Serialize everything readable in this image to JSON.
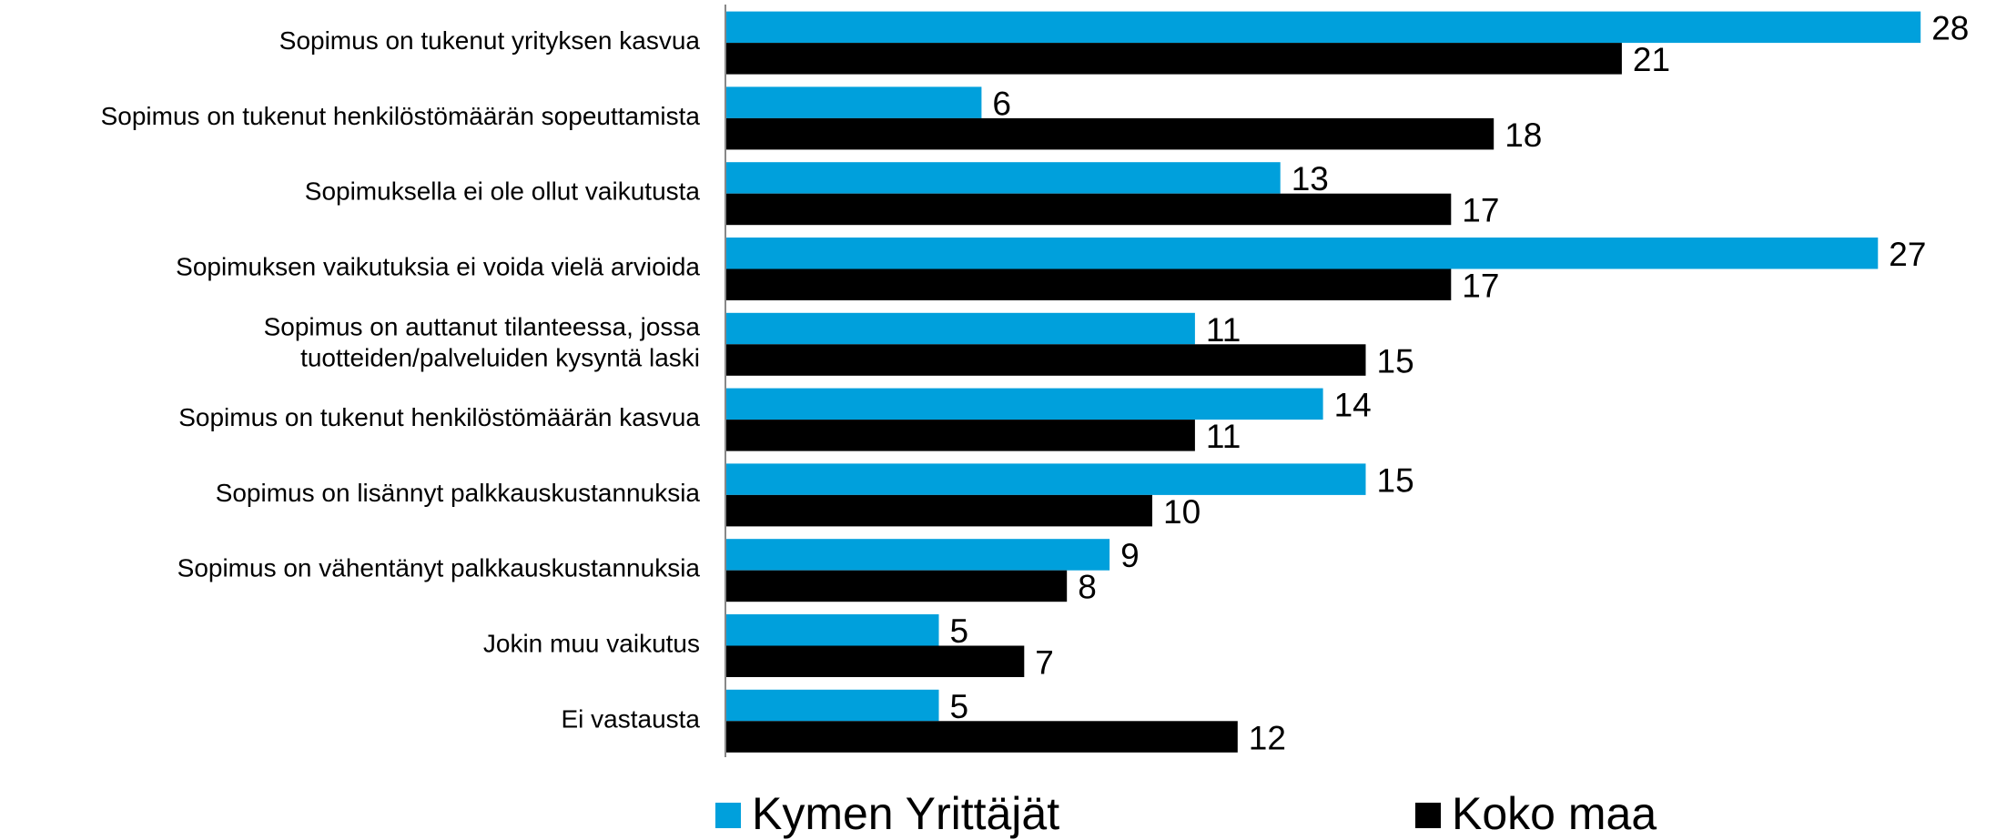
{
  "chart_data": {
    "type": "bar",
    "orientation": "horizontal",
    "categories": [
      "Sopimus on tukenut yrityksen kasvua",
      "Sopimus on tukenut henkilöstömäärän sopeuttamista",
      "Sopimuksella ei ole ollut vaikutusta",
      "Sopimuksen vaikutuksia ei voida vielä arvioida",
      "Sopimus on auttanut tilanteessa, jossa\ntuotteiden/palveluiden kysyntä laski",
      "Sopimus on tukenut henkilöstömäärän kasvua",
      "Sopimus on lisännyt palkkauskustannuksia",
      "Sopimus on vähentänyt palkkauskustannuksia",
      "Jokin muu vaikutus",
      "Ei vastausta"
    ],
    "series": [
      {
        "name": "Kymen Yrittäjät",
        "color": "#00a0dc",
        "values": [
          28,
          6,
          13,
          27,
          11,
          14,
          15,
          9,
          5,
          5
        ]
      },
      {
        "name": "Koko maa",
        "color": "#000000",
        "values": [
          21,
          18,
          17,
          17,
          15,
          11,
          10,
          8,
          7,
          12
        ]
      }
    ],
    "legend": "bottom"
  }
}
